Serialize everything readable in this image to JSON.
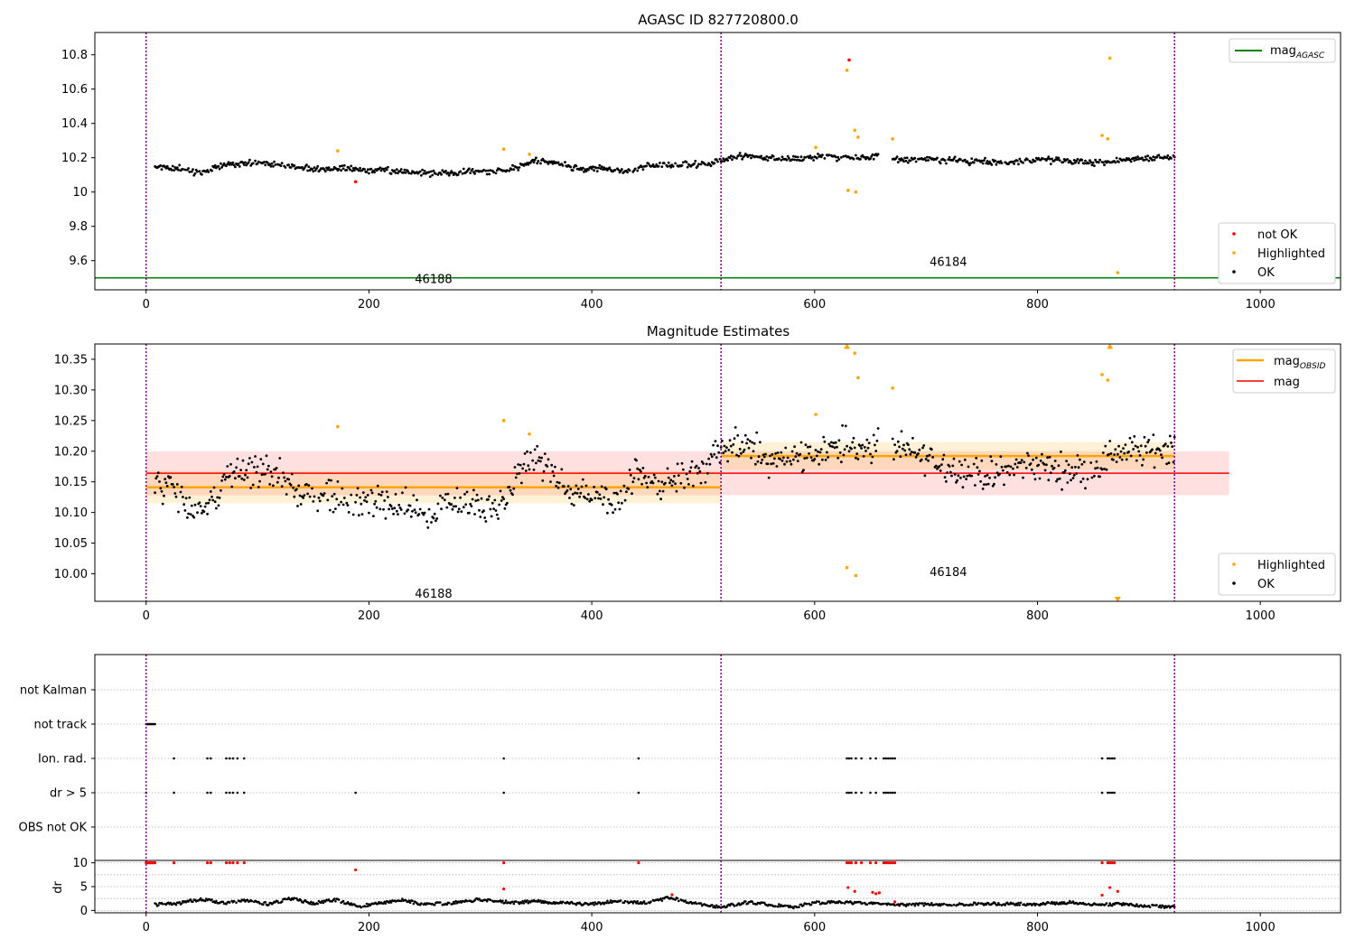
{
  "chart_data": [
    {
      "type": "scatter",
      "title": "AGASC ID 827720800.0",
      "xlabel": "",
      "ylabel": "",
      "xlim": [
        -46,
        1072
      ],
      "ylim": [
        9.43,
        10.93
      ],
      "x_ticks": [
        0,
        200,
        400,
        600,
        800,
        1000
      ],
      "y_ticks": [
        9.6,
        9.8,
        10.0,
        10.2,
        10.4,
        10.6,
        10.8
      ],
      "grid": false,
      "legend_placement_top": "top-right",
      "legend_placement_bottom": "bottom-right",
      "obsid_boundaries": [
        0,
        516,
        923
      ],
      "obsid_labels": [
        {
          "label": "46188",
          "x": 258,
          "y": 9.49
        },
        {
          "label": "46184",
          "x": 720,
          "y": 9.59
        }
      ],
      "lines": [
        {
          "name": "mag",
          "subscript": "AGASC",
          "y": 9.5,
          "x_range": [
            -46,
            1072
          ],
          "color": "#008000"
        }
      ],
      "point_groups": [
        {
          "name": "not OK",
          "color": "#ff0000"
        },
        {
          "name": "Highlighted",
          "color": "#ffa500"
        },
        {
          "name": "OK",
          "color": "#000000"
        }
      ],
      "ok_trend": [
        [
          5,
          10.15
        ],
        [
          30,
          10.14
        ],
        [
          50,
          10.11
        ],
        [
          70,
          10.16
        ],
        [
          100,
          10.17
        ],
        [
          130,
          10.15
        ],
        [
          160,
          10.13
        ],
        [
          180,
          10.14
        ],
        [
          200,
          10.13
        ],
        [
          230,
          10.12
        ],
        [
          260,
          10.11
        ],
        [
          290,
          10.12
        ],
        [
          310,
          10.12
        ],
        [
          330,
          10.14
        ],
        [
          350,
          10.18
        ],
        [
          370,
          10.17
        ],
        [
          390,
          10.13
        ],
        [
          410,
          10.14
        ],
        [
          430,
          10.12
        ],
        [
          450,
          10.15
        ],
        [
          480,
          10.16
        ],
        [
          510,
          10.17
        ],
        [
          530,
          10.21
        ],
        [
          560,
          10.2
        ],
        [
          590,
          10.19
        ],
        [
          610,
          10.21
        ],
        [
          630,
          10.2
        ],
        [
          650,
          10.2
        ],
        [
          660,
          10.22
        ],
        [
          675,
          10.19
        ],
        [
          700,
          10.19
        ],
        [
          740,
          10.18
        ],
        [
          770,
          10.17
        ],
        [
          800,
          10.19
        ],
        [
          830,
          10.18
        ],
        [
          860,
          10.17
        ],
        [
          880,
          10.19
        ],
        [
          900,
          10.2
        ],
        [
          923,
          10.21
        ]
      ],
      "ok_gaps": [
        [
          657,
          670
        ]
      ],
      "highlighted_points": [
        [
          172,
          10.24
        ],
        [
          321,
          10.25
        ],
        [
          344,
          10.22
        ],
        [
          601,
          10.26
        ],
        [
          629,
          10.71
        ],
        [
          630,
          10.01
        ],
        [
          636,
          10.36
        ],
        [
          637,
          10.0
        ],
        [
          639,
          10.32
        ],
        [
          670,
          10.31
        ],
        [
          858,
          10.33
        ],
        [
          863,
          10.31
        ],
        [
          865,
          10.78
        ],
        [
          872,
          9.53
        ]
      ],
      "not_ok_points": [
        [
          188,
          10.06
        ],
        [
          631,
          10.77
        ]
      ]
    },
    {
      "type": "scatter",
      "title": "Magnitude Estimates",
      "xlabel": "",
      "ylabel": "",
      "xlim": [
        -46,
        1072
      ],
      "ylim": [
        9.955,
        10.375
      ],
      "x_ticks": [
        0,
        200,
        400,
        600,
        800,
        1000
      ],
      "y_ticks": [
        10.0,
        10.05,
        10.1,
        10.15,
        10.2,
        10.25,
        10.3,
        10.35
      ],
      "y_tick_labels": [
        "10.00",
        "10.05",
        "10.10",
        "10.15",
        "10.20",
        "10.25",
        "10.30",
        "10.35"
      ],
      "grid": false,
      "legend_placement_top": "top-right",
      "legend_placement_bottom": "bottom-right",
      "obsid_boundaries": [
        0,
        516,
        923
      ],
      "obsid_labels": [
        {
          "label": "46188",
          "x": 258,
          "y": 9.967
        },
        {
          "label": "46184",
          "x": 720,
          "y": 10.002
        }
      ],
      "bands": [
        {
          "x_range": [
            0,
            972
          ],
          "y_range": [
            10.128,
            10.2
          ],
          "color": "#ff0000",
          "opacity": 0.12
        },
        {
          "x_range": [
            0,
            516
          ],
          "y_range": [
            10.115,
            10.168
          ],
          "color": "#ffa500",
          "opacity": 0.16
        },
        {
          "x_range": [
            516,
            923
          ],
          "y_range": [
            10.17,
            10.215
          ],
          "color": "#ffa500",
          "opacity": 0.16
        }
      ],
      "lines": [
        {
          "name": "mag",
          "subscript": "OBSID",
          "segments": [
            [
              0,
              516,
              10.141
            ],
            [
              516,
              923,
              10.192
            ]
          ],
          "color": "#ffa500",
          "width": 2.5
        },
        {
          "name": "mag",
          "subscript": "",
          "segments": [
            [
              0,
              972,
              10.164
            ]
          ],
          "color": "#ff0000",
          "width": 1.5
        }
      ],
      "point_groups": [
        {
          "name": "Highlighted",
          "color": "#ffa500"
        },
        {
          "name": "OK",
          "color": "#000000"
        }
      ],
      "ok_trend": [
        [
          5,
          10.15
        ],
        [
          20,
          10.14
        ],
        [
          40,
          10.11
        ],
        [
          50,
          10.1
        ],
        [
          60,
          10.12
        ],
        [
          80,
          10.17
        ],
        [
          100,
          10.17
        ],
        [
          120,
          10.16
        ],
        [
          140,
          10.13
        ],
        [
          160,
          10.13
        ],
        [
          180,
          10.12
        ],
        [
          200,
          10.12
        ],
        [
          230,
          10.11
        ],
        [
          260,
          10.1
        ],
        [
          290,
          10.12
        ],
        [
          310,
          10.1
        ],
        [
          330,
          10.14
        ],
        [
          345,
          10.19
        ],
        [
          360,
          10.18
        ],
        [
          380,
          10.13
        ],
        [
          400,
          10.13
        ],
        [
          420,
          10.11
        ],
        [
          440,
          10.17
        ],
        [
          460,
          10.14
        ],
        [
          480,
          10.16
        ],
        [
          500,
          10.17
        ],
        [
          516,
          10.2
        ],
        [
          530,
          10.21
        ],
        [
          560,
          10.19
        ],
        [
          580,
          10.19
        ],
        [
          600,
          10.2
        ],
        [
          630,
          10.21
        ],
        [
          650,
          10.2
        ],
        [
          660,
          10.22
        ],
        [
          680,
          10.2
        ],
        [
          700,
          10.19
        ],
        [
          730,
          10.17
        ],
        [
          760,
          10.16
        ],
        [
          790,
          10.18
        ],
        [
          820,
          10.17
        ],
        [
          850,
          10.17
        ],
        [
          870,
          10.2
        ],
        [
          900,
          10.2
        ],
        [
          923,
          10.21
        ]
      ],
      "ok_gaps": [
        [
          657,
          670
        ]
      ],
      "highlighted_points": [
        [
          172,
          10.24
        ],
        [
          321,
          10.25
        ],
        [
          344,
          10.228
        ],
        [
          601,
          10.26
        ],
        [
          629,
          10.01
        ],
        [
          636,
          10.36
        ],
        [
          637,
          9.997
        ],
        [
          639,
          10.32
        ],
        [
          670,
          10.303
        ],
        [
          858,
          10.325
        ],
        [
          863,
          10.316
        ]
      ],
      "highlighted_triangles_up": [
        [
          629,
          10.37
        ],
        [
          865,
          10.37
        ]
      ],
      "highlighted_triangles_down": [
        [
          872,
          9.958
        ]
      ]
    },
    {
      "type": "scatter",
      "title": "",
      "xlabel": "",
      "ylabel": "",
      "xlim": [
        -46,
        1072
      ],
      "x_ticks": [
        0,
        200,
        400,
        600,
        800,
        1000
      ],
      "flag_categories": [
        "not Kalman",
        "not track",
        "Ion. rad.",
        "dr > 5",
        "OBS not OK"
      ],
      "grid": true,
      "obsid_boundaries": [
        0,
        516,
        923
      ],
      "flags": {
        "not track": [
          0,
          1,
          2,
          3,
          4,
          5,
          6,
          7,
          8
        ],
        "Ion. rad.": [
          25,
          55,
          58,
          72,
          75,
          78,
          82,
          88,
          321,
          442,
          629,
          631,
          633,
          637,
          642,
          650,
          655,
          662,
          664,
          666,
          668,
          670,
          672,
          858,
          863,
          865,
          867,
          869
        ],
        "dr > 5": [
          0,
          25,
          55,
          58,
          72,
          75,
          78,
          82,
          88,
          188,
          321,
          442,
          629,
          631,
          633,
          637,
          642,
          650,
          655,
          662,
          664,
          666,
          668,
          670,
          672,
          858,
          863,
          865,
          867,
          869
        ]
      }
    },
    {
      "type": "scatter",
      "title": "",
      "xlabel": "",
      "ylabel": "dr",
      "xlim": [
        -46,
        1072
      ],
      "ylim": [
        -0.5,
        10.5
      ],
      "x_ticks": [
        0,
        200,
        400,
        600,
        800,
        1000
      ],
      "y_ticks": [
        0,
        5,
        10
      ],
      "grid": true,
      "obsid_boundaries": [
        0,
        516,
        923
      ],
      "ok_trend": [
        [
          8,
          1.2
        ],
        [
          30,
          1.5
        ],
        [
          40,
          2
        ],
        [
          50,
          2.3
        ],
        [
          70,
          1.6
        ],
        [
          90,
          2.2
        ],
        [
          110,
          1.3
        ],
        [
          130,
          2.5
        ],
        [
          150,
          1.5
        ],
        [
          170,
          2.2
        ],
        [
          190,
          0.8
        ],
        [
          210,
          1.6
        ],
        [
          230,
          2.2
        ],
        [
          250,
          1.2
        ],
        [
          280,
          1.7
        ],
        [
          300,
          2.3
        ],
        [
          330,
          1.6
        ],
        [
          350,
          1.9
        ],
        [
          380,
          1.5
        ],
        [
          400,
          1.3
        ],
        [
          420,
          1.9
        ],
        [
          450,
          1.6
        ],
        [
          470,
          2.7
        ],
        [
          490,
          1.6
        ],
        [
          516,
          0.7
        ],
        [
          540,
          1.7
        ],
        [
          560,
          1.2
        ],
        [
          580,
          0.7
        ],
        [
          600,
          1.6
        ],
        [
          625,
          1.7
        ],
        [
          680,
          1.2
        ],
        [
          720,
          1.3
        ],
        [
          760,
          1.4
        ],
        [
          800,
          1.3
        ],
        [
          830,
          1.7
        ],
        [
          855,
          1.2
        ],
        [
          880,
          1.3
        ],
        [
          900,
          0.9
        ],
        [
          923,
          0.7
        ]
      ],
      "red_points_at_10": [
        0,
        1,
        2,
        3,
        4,
        5,
        6,
        7,
        8,
        25,
        55,
        58,
        72,
        75,
        78,
        82,
        88,
        321,
        442,
        629,
        631,
        633,
        637,
        642,
        650,
        655,
        662,
        664,
        666,
        668,
        670,
        672,
        858,
        863,
        865,
        867,
        869
      ],
      "red_points_other": [
        [
          188,
          8.5
        ],
        [
          321,
          4.5
        ],
        [
          472,
          3.3
        ],
        [
          630,
          4.8
        ],
        [
          636,
          4
        ],
        [
          652,
          3.8
        ],
        [
          655,
          3.5
        ],
        [
          658,
          3.7
        ],
        [
          672,
          1.8
        ],
        [
          858,
          3.2
        ],
        [
          865,
          4.8
        ],
        [
          872,
          4
        ]
      ]
    }
  ]
}
